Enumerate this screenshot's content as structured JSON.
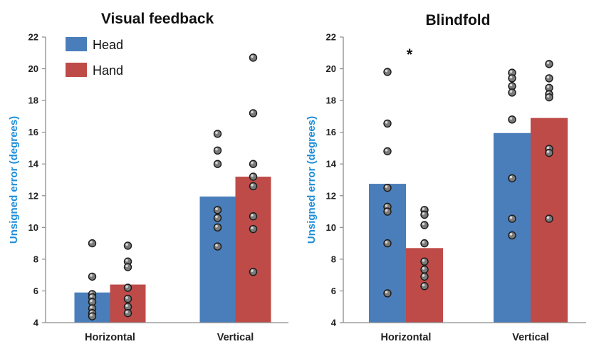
{
  "colors": {
    "head": "#4a7ebb",
    "hand": "#be4b48",
    "axis": "#8c8c8c",
    "dot_fill": "#7a7a7a",
    "ylabel": "#1f8ed8"
  },
  "chart_data": [
    {
      "type": "bar",
      "title": "Visual feedback",
      "ylabel": "Unsigned error (degrees)",
      "xlabel": "",
      "ylim": [
        4,
        22
      ],
      "yticks": [
        4,
        6,
        8,
        10,
        12,
        14,
        16,
        18,
        20,
        22
      ],
      "categories": [
        "Horizontal",
        "Vertical"
      ],
      "legend": {
        "position": "top-left"
      },
      "series": [
        {
          "name": "Head",
          "color": "#4a7ebb",
          "values": [
            5.9,
            11.95
          ],
          "points": [
            [
              9.0,
              6.9,
              5.8,
              5.6,
              5.3,
              4.9,
              4.6,
              4.4
            ],
            [
              15.9,
              14.85,
              14.0,
              11.1,
              10.6,
              10.0,
              8.8
            ]
          ]
        },
        {
          "name": "Hand",
          "color": "#be4b48",
          "values": [
            6.4,
            13.2
          ],
          "points": [
            [
              8.85,
              7.85,
              7.5,
              6.2,
              5.5,
              5.0,
              4.6
            ],
            [
              20.7,
              17.2,
              14.0,
              13.2,
              12.6,
              10.7,
              9.9,
              7.2
            ]
          ]
        }
      ],
      "annotations": []
    },
    {
      "type": "bar",
      "title": "Blindfold",
      "ylabel": "Unsigned error (degrees)",
      "xlabel": "",
      "ylim": [
        4,
        22
      ],
      "yticks": [
        4,
        6,
        8,
        10,
        12,
        14,
        16,
        18,
        20,
        22
      ],
      "categories": [
        "Horizontal",
        "Vertical"
      ],
      "legend": null,
      "series": [
        {
          "name": "Head",
          "color": "#4a7ebb",
          "values": [
            12.75,
            15.95
          ],
          "points": [
            [
              19.8,
              16.55,
              14.8,
              12.5,
              11.3,
              11.0,
              9.0,
              5.85
            ],
            [
              19.75,
              19.4,
              18.9,
              18.5,
              16.8,
              13.1,
              10.55,
              9.5
            ]
          ]
        },
        {
          "name": "Hand",
          "color": "#be4b48",
          "values": [
            8.7,
            16.9
          ],
          "points": [
            [
              11.1,
              10.8,
              10.15,
              9.0,
              7.85,
              7.35,
              6.9,
              6.3
            ],
            [
              20.3,
              19.4,
              18.8,
              18.4,
              18.2,
              14.95,
              14.7,
              10.55
            ]
          ]
        }
      ],
      "annotations": [
        {
          "text": "*",
          "category": "Horizontal",
          "y": 21.2
        }
      ]
    }
  ]
}
